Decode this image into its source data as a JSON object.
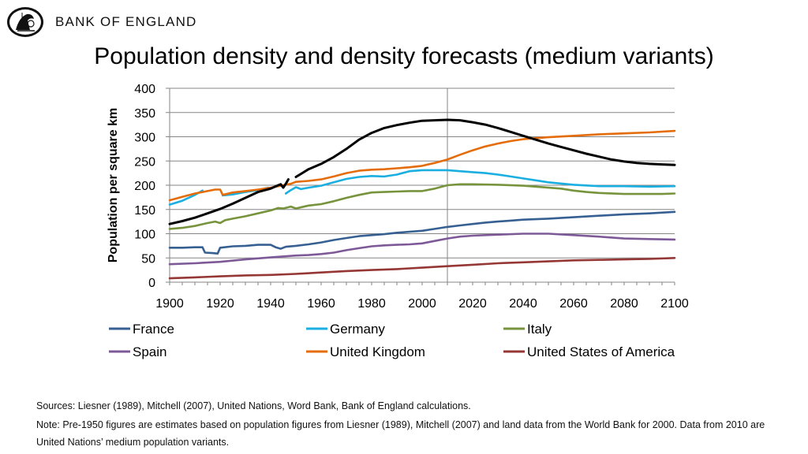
{
  "header": {
    "brand": "BANK OF ENGLAND",
    "logo_icon": "britannia-seal-icon",
    "title": "Population density and density forecasts (medium variants)"
  },
  "chart_data": {
    "type": "line",
    "title": "Population density and density forecasts (medium variants)",
    "xlabel": "",
    "ylabel": "Population per square km",
    "xlim": [
      1900,
      2100
    ],
    "ylim": [
      0,
      400
    ],
    "xticks": [
      1900,
      1920,
      1940,
      1960,
      1980,
      2000,
      2020,
      2040,
      2060,
      2080,
      2100
    ],
    "yticks": [
      0,
      50,
      100,
      150,
      200,
      250,
      300,
      350,
      400
    ],
    "grid": "horizontal",
    "forecast_divider_x": 2010,
    "legend_position": "bottom",
    "series": [
      {
        "name": "France",
        "color": "#376092",
        "points": [
          [
            1900,
            71
          ],
          [
            1905,
            71
          ],
          [
            1910,
            72
          ],
          [
            1913,
            72
          ],
          [
            1914,
            61
          ],
          [
            1917,
            60
          ],
          [
            1919,
            59
          ],
          [
            1920,
            71
          ],
          [
            1925,
            74
          ],
          [
            1930,
            75
          ],
          [
            1935,
            77
          ],
          [
            1940,
            77
          ],
          [
            1942,
            72
          ],
          [
            1944,
            69
          ],
          [
            1946,
            73
          ],
          [
            1950,
            75
          ],
          [
            1955,
            78
          ],
          [
            1960,
            82
          ],
          [
            1965,
            87
          ],
          [
            1970,
            91
          ],
          [
            1975,
            95
          ],
          [
            1980,
            97
          ],
          [
            1985,
            99
          ],
          [
            1990,
            102
          ],
          [
            1995,
            104
          ],
          [
            2000,
            106
          ],
          [
            2005,
            110
          ],
          [
            2010,
            114
          ],
          [
            2015,
            117
          ],
          [
            2020,
            120
          ],
          [
            2025,
            123
          ],
          [
            2030,
            125
          ],
          [
            2035,
            127
          ],
          [
            2040,
            129
          ],
          [
            2045,
            130
          ],
          [
            2050,
            131
          ],
          [
            2060,
            134
          ],
          [
            2070,
            137
          ],
          [
            2080,
            140
          ],
          [
            2090,
            142
          ],
          [
            2100,
            145
          ]
        ]
      },
      {
        "name": "Germany",
        "color": "#1aafe0",
        "segments": [
          [
            [
              1900,
              160
            ],
            [
              1905,
              168
            ],
            [
              1910,
              180
            ],
            [
              1913,
              189
            ]
          ],
          [
            [
              1921,
              179
            ],
            [
              1925,
              181
            ],
            [
              1930,
              186
            ],
            [
              1935,
              190
            ],
            [
              1939,
              195
            ]
          ],
          [
            [
              1946,
              183
            ],
            [
              1948,
              190
            ],
            [
              1950,
              196
            ],
            [
              1952,
              192
            ],
            [
              1955,
              195
            ],
            [
              1960,
              199
            ],
            [
              1965,
              206
            ],
            [
              1970,
              213
            ],
            [
              1975,
              217
            ],
            [
              1980,
              219
            ],
            [
              1985,
              218
            ],
            [
              1990,
              222
            ],
            [
              1995,
              229
            ],
            [
              2000,
              231
            ],
            [
              2005,
              231
            ],
            [
              2010,
              231
            ],
            [
              2015,
              229
            ],
            [
              2020,
              227
            ],
            [
              2025,
              225
            ],
            [
              2030,
              222
            ],
            [
              2035,
              218
            ],
            [
              2040,
              214
            ],
            [
              2045,
              210
            ],
            [
              2050,
              206
            ],
            [
              2060,
              201
            ],
            [
              2070,
              198
            ],
            [
              2080,
              198
            ],
            [
              2090,
              197
            ],
            [
              2100,
              198
            ]
          ]
        ]
      },
      {
        "name": "Italy",
        "color": "#77933c",
        "points": [
          [
            1900,
            110
          ],
          [
            1905,
            112
          ],
          [
            1910,
            116
          ],
          [
            1915,
            122
          ],
          [
            1918,
            125
          ],
          [
            1920,
            122
          ],
          [
            1922,
            128
          ],
          [
            1925,
            131
          ],
          [
            1930,
            136
          ],
          [
            1935,
            142
          ],
          [
            1940,
            148
          ],
          [
            1943,
            153
          ],
          [
            1945,
            152
          ],
          [
            1948,
            156
          ],
          [
            1950,
            152
          ],
          [
            1955,
            158
          ],
          [
            1960,
            161
          ],
          [
            1965,
            167
          ],
          [
            1970,
            174
          ],
          [
            1975,
            180
          ],
          [
            1980,
            185
          ],
          [
            1985,
            186
          ],
          [
            1990,
            187
          ],
          [
            1995,
            188
          ],
          [
            2000,
            188
          ],
          [
            2005,
            193
          ],
          [
            2010,
            200
          ],
          [
            2015,
            202
          ],
          [
            2020,
            202
          ],
          [
            2030,
            201
          ],
          [
            2040,
            199
          ],
          [
            2050,
            195
          ],
          [
            2055,
            193
          ],
          [
            2060,
            189
          ],
          [
            2065,
            186
          ],
          [
            2070,
            184
          ],
          [
            2080,
            182
          ],
          [
            2090,
            182
          ],
          [
            2095,
            182
          ],
          [
            2100,
            183
          ]
        ]
      },
      {
        "name": "Spain",
        "color": "#7d5a97",
        "points": [
          [
            1900,
            37
          ],
          [
            1910,
            39
          ],
          [
            1920,
            42
          ],
          [
            1930,
            47
          ],
          [
            1940,
            51
          ],
          [
            1950,
            55
          ],
          [
            1955,
            56
          ],
          [
            1960,
            58
          ],
          [
            1965,
            61
          ],
          [
            1970,
            66
          ],
          [
            1975,
            70
          ],
          [
            1980,
            74
          ],
          [
            1985,
            76
          ],
          [
            1990,
            77
          ],
          [
            1995,
            78
          ],
          [
            2000,
            80
          ],
          [
            2005,
            85
          ],
          [
            2010,
            90
          ],
          [
            2015,
            94
          ],
          [
            2020,
            96
          ],
          [
            2030,
            98
          ],
          [
            2040,
            100
          ],
          [
            2050,
            100
          ],
          [
            2060,
            97
          ],
          [
            2070,
            94
          ],
          [
            2080,
            90
          ],
          [
            2090,
            89
          ],
          [
            2100,
            88
          ]
        ]
      },
      {
        "name": "United Kingdom",
        "color": "#e46c0a",
        "points": [
          [
            1900,
            169
          ],
          [
            1905,
            176
          ],
          [
            1910,
            183
          ],
          [
            1915,
            188
          ],
          [
            1918,
            191
          ],
          [
            1920,
            191
          ],
          [
            1921,
            180
          ],
          [
            1925,
            185
          ],
          [
            1930,
            188
          ],
          [
            1935,
            191
          ],
          [
            1940,
            195
          ],
          [
            1945,
            200
          ],
          [
            1948,
            203
          ],
          [
            1950,
            207
          ],
          [
            1955,
            209
          ],
          [
            1960,
            212
          ],
          [
            1965,
            218
          ],
          [
            1970,
            225
          ],
          [
            1975,
            230
          ],
          [
            1980,
            232
          ],
          [
            1985,
            233
          ],
          [
            1990,
            235
          ],
          [
            1995,
            237
          ],
          [
            2000,
            240
          ],
          [
            2005,
            246
          ],
          [
            2010,
            253
          ],
          [
            2015,
            263
          ],
          [
            2020,
            272
          ],
          [
            2025,
            280
          ],
          [
            2030,
            286
          ],
          [
            2035,
            291
          ],
          [
            2040,
            295
          ],
          [
            2045,
            297
          ],
          [
            2050,
            299
          ],
          [
            2060,
            302
          ],
          [
            2070,
            305
          ],
          [
            2080,
            307
          ],
          [
            2090,
            309
          ],
          [
            2100,
            312
          ]
        ]
      },
      {
        "name": "Population density (black line)",
        "color": "#000000",
        "unlabeled": true,
        "segments": [
          [
            [
              1900,
              120
            ],
            [
              1905,
              126
            ],
            [
              1910,
              133
            ],
            [
              1915,
              142
            ],
            [
              1920,
              151
            ],
            [
              1925,
              162
            ],
            [
              1930,
              174
            ],
            [
              1935,
              186
            ],
            [
              1940,
              193
            ],
            [
              1943,
              200
            ],
            [
              1944,
              202
            ],
            [
              1945,
              195
            ],
            [
              1946,
              203
            ],
            [
              1947,
              212
            ]
          ],
          [
            [
              1950,
              217
            ],
            [
              1955,
              233
            ],
            [
              1960,
              244
            ],
            [
              1965,
              258
            ],
            [
              1970,
              275
            ],
            [
              1975,
              294
            ],
            [
              1980,
              308
            ],
            [
              1985,
              318
            ],
            [
              1990,
              324
            ],
            [
              1995,
              329
            ],
            [
              2000,
              333
            ],
            [
              2005,
              334
            ],
            [
              2010,
              335
            ],
            [
              2015,
              334
            ],
            [
              2020,
              330
            ],
            [
              2025,
              325
            ],
            [
              2030,
              318
            ],
            [
              2035,
              310
            ],
            [
              2040,
              302
            ],
            [
              2045,
              294
            ],
            [
              2050,
              286
            ],
            [
              2055,
              279
            ],
            [
              2060,
              272
            ],
            [
              2065,
              265
            ],
            [
              2070,
              259
            ],
            [
              2075,
              253
            ],
            [
              2080,
              249
            ],
            [
              2085,
              246
            ],
            [
              2090,
              244
            ],
            [
              2095,
              243
            ],
            [
              2100,
              242
            ]
          ]
        ]
      },
      {
        "name": "United States of America",
        "color": "#953735",
        "points": [
          [
            1900,
            8
          ],
          [
            1910,
            10
          ],
          [
            1920,
            12
          ],
          [
            1930,
            14
          ],
          [
            1940,
            15
          ],
          [
            1950,
            17
          ],
          [
            1960,
            20
          ],
          [
            1970,
            23
          ],
          [
            1980,
            25
          ],
          [
            1990,
            27
          ],
          [
            2000,
            30
          ],
          [
            2010,
            33
          ],
          [
            2020,
            36
          ],
          [
            2030,
            39
          ],
          [
            2040,
            41
          ],
          [
            2050,
            43
          ],
          [
            2060,
            45
          ],
          [
            2070,
            46
          ],
          [
            2080,
            47
          ],
          [
            2090,
            48
          ],
          [
            2100,
            50
          ]
        ]
      }
    ],
    "legend": [
      {
        "name": "France",
        "color": "#376092"
      },
      {
        "name": "Germany",
        "color": "#1aafe0"
      },
      {
        "name": "Italy",
        "color": "#77933c"
      },
      {
        "name": "Spain",
        "color": "#7d5a97"
      },
      {
        "name": "United Kingdom",
        "color": "#e46c0a"
      },
      {
        "name": "United States of America",
        "color": "#953735"
      }
    ]
  },
  "notes": {
    "sources": "Sources: Liesner (1989), Mitchell (2007), United Nations, Word Bank, Bank of England calculations.",
    "note": "Note: Pre-1950 figures are estimates based on population figures from Liesner (1989), Mitchell (2007) and land data from the World Bank for 2000.  Data from 2010 are United Nations’ medium population variants."
  },
  "colors": {
    "grid": "#868686",
    "axis": "#868686",
    "text": "#000000"
  }
}
